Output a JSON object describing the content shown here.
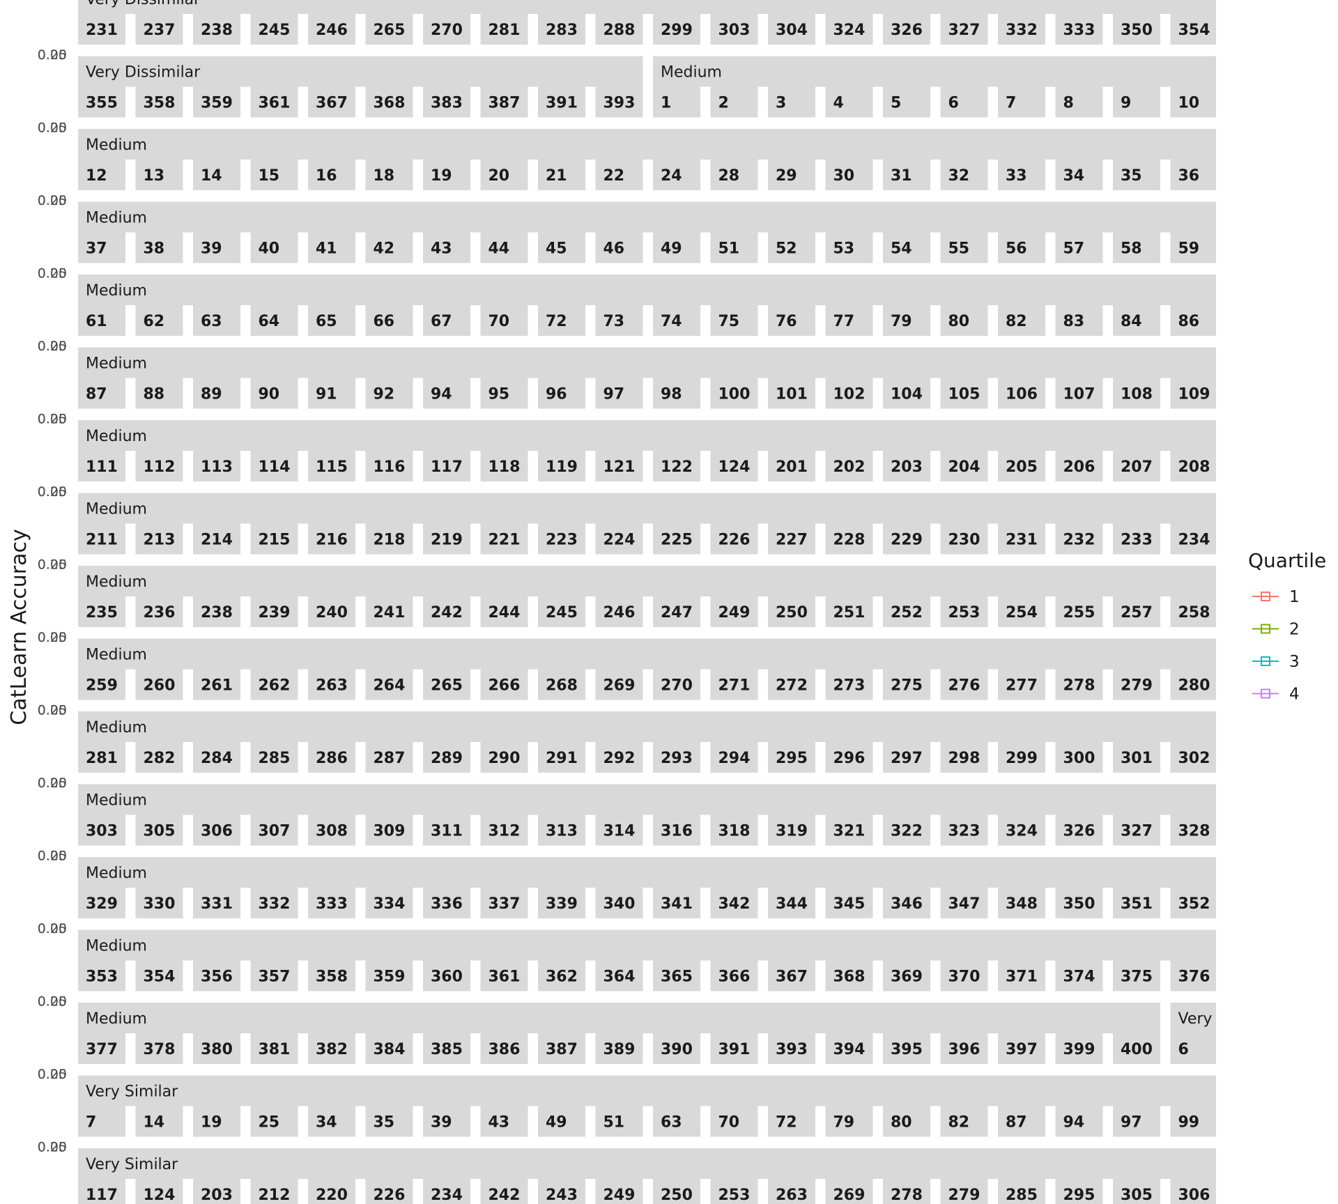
{
  "chart_data": {
    "type": "line",
    "ylabel": "CatLearn Accuracy",
    "y_tick_labels": [
      "0.00",
      "0.25"
    ],
    "legend": {
      "title": "Quartile",
      "entries": [
        {
          "label": "1",
          "color": "#F8766D"
        },
        {
          "label": "2",
          "color": "#7CAE00"
        },
        {
          "label": "3",
          "color": "#00BFC4"
        },
        {
          "label": "4",
          "color": "#C77CFF"
        }
      ],
      "position": "right"
    },
    "facet_rows": [
      {
        "groups": [
          {
            "name": "Very Dissimilar",
            "ids": [
              "231",
              "237",
              "238",
              "245",
              "246",
              "265",
              "270",
              "281",
              "283",
              "288",
              "299",
              "303",
              "304",
              "324",
              "326",
              "327",
              "332",
              "333",
              "350",
              "354"
            ]
          }
        ]
      },
      {
        "groups": [
          {
            "name": "Very Dissimilar",
            "ids": [
              "355",
              "358",
              "359",
              "361",
              "367",
              "368",
              "383",
              "387",
              "391",
              "393"
            ]
          },
          {
            "name": "Medium",
            "ids": [
              "1",
              "2",
              "3",
              "4",
              "5",
              "6",
              "7",
              "8",
              "9",
              "10"
            ]
          }
        ]
      },
      {
        "groups": [
          {
            "name": "Medium",
            "ids": [
              "12",
              "13",
              "14",
              "15",
              "16",
              "18",
              "19",
              "20",
              "21",
              "22",
              "24",
              "28",
              "29",
              "30",
              "31",
              "32",
              "33",
              "34",
              "35",
              "36"
            ]
          }
        ]
      },
      {
        "groups": [
          {
            "name": "Medium",
            "ids": [
              "37",
              "38",
              "39",
              "40",
              "41",
              "42",
              "43",
              "44",
              "45",
              "46",
              "49",
              "51",
              "52",
              "53",
              "54",
              "55",
              "56",
              "57",
              "58",
              "59"
            ]
          }
        ]
      },
      {
        "groups": [
          {
            "name": "Medium",
            "ids": [
              "61",
              "62",
              "63",
              "64",
              "65",
              "66",
              "67",
              "70",
              "72",
              "73",
              "74",
              "75",
              "76",
              "77",
              "79",
              "80",
              "82",
              "83",
              "84",
              "86"
            ]
          }
        ]
      },
      {
        "groups": [
          {
            "name": "Medium",
            "ids": [
              "87",
              "88",
              "89",
              "90",
              "91",
              "92",
              "94",
              "95",
              "96",
              "97",
              "98",
              "100",
              "101",
              "102",
              "104",
              "105",
              "106",
              "107",
              "108",
              "109"
            ]
          }
        ]
      },
      {
        "groups": [
          {
            "name": "Medium",
            "ids": [
              "111",
              "112",
              "113",
              "114",
              "115",
              "116",
              "117",
              "118",
              "119",
              "121",
              "122",
              "124",
              "201",
              "202",
              "203",
              "204",
              "205",
              "206",
              "207",
              "208"
            ]
          }
        ]
      },
      {
        "groups": [
          {
            "name": "Medium",
            "ids": [
              "211",
              "213",
              "214",
              "215",
              "216",
              "218",
              "219",
              "221",
              "223",
              "224",
              "225",
              "226",
              "227",
              "228",
              "229",
              "230",
              "231",
              "232",
              "233",
              "234"
            ]
          }
        ]
      },
      {
        "groups": [
          {
            "name": "Medium",
            "ids": [
              "235",
              "236",
              "238",
              "239",
              "240",
              "241",
              "242",
              "244",
              "245",
              "246",
              "247",
              "249",
              "250",
              "251",
              "252",
              "253",
              "254",
              "255",
              "257",
              "258"
            ]
          }
        ]
      },
      {
        "groups": [
          {
            "name": "Medium",
            "ids": [
              "259",
              "260",
              "261",
              "262",
              "263",
              "264",
              "265",
              "266",
              "268",
              "269",
              "270",
              "271",
              "272",
              "273",
              "275",
              "276",
              "277",
              "278",
              "279",
              "280"
            ]
          }
        ]
      },
      {
        "groups": [
          {
            "name": "Medium",
            "ids": [
              "281",
              "282",
              "284",
              "285",
              "286",
              "287",
              "289",
              "290",
              "291",
              "292",
              "293",
              "294",
              "295",
              "296",
              "297",
              "298",
              "299",
              "300",
              "301",
              "302"
            ]
          }
        ]
      },
      {
        "groups": [
          {
            "name": "Medium",
            "ids": [
              "303",
              "305",
              "306",
              "307",
              "308",
              "309",
              "311",
              "312",
              "313",
              "314",
              "316",
              "318",
              "319",
              "321",
              "322",
              "323",
              "324",
              "326",
              "327",
              "328"
            ]
          }
        ]
      },
      {
        "groups": [
          {
            "name": "Medium",
            "ids": [
              "329",
              "330",
              "331",
              "332",
              "333",
              "334",
              "336",
              "337",
              "339",
              "340",
              "341",
              "342",
              "344",
              "345",
              "346",
              "347",
              "348",
              "350",
              "351",
              "352"
            ]
          }
        ]
      },
      {
        "groups": [
          {
            "name": "Medium",
            "ids": [
              "353",
              "354",
              "356",
              "357",
              "358",
              "359",
              "360",
              "361",
              "362",
              "364",
              "365",
              "366",
              "367",
              "368",
              "369",
              "370",
              "371",
              "374",
              "375",
              "376"
            ]
          }
        ]
      },
      {
        "groups": [
          {
            "name": "Medium",
            "ids": [
              "377",
              "378",
              "380",
              "381",
              "382",
              "384",
              "385",
              "386",
              "387",
              "389",
              "390",
              "391",
              "393",
              "394",
              "395",
              "396",
              "397",
              "399",
              "400"
            ]
          },
          {
            "name": "Very S",
            "ids": [
              "6"
            ]
          }
        ]
      },
      {
        "groups": [
          {
            "name": "Very Similar",
            "ids": [
              "7",
              "14",
              "19",
              "25",
              "34",
              "35",
              "39",
              "43",
              "49",
              "51",
              "63",
              "70",
              "72",
              "79",
              "80",
              "82",
              "87",
              "94",
              "97",
              "99"
            ]
          }
        ]
      },
      {
        "groups": [
          {
            "name": "Very Similar",
            "ids": [
              "117",
              "124",
              "203",
              "212",
              "220",
              "226",
              "234",
              "242",
              "243",
              "249",
              "250",
              "253",
              "263",
              "269",
              "278",
              "279",
              "285",
              "295",
              "305",
              "306"
            ]
          }
        ]
      }
    ]
  }
}
